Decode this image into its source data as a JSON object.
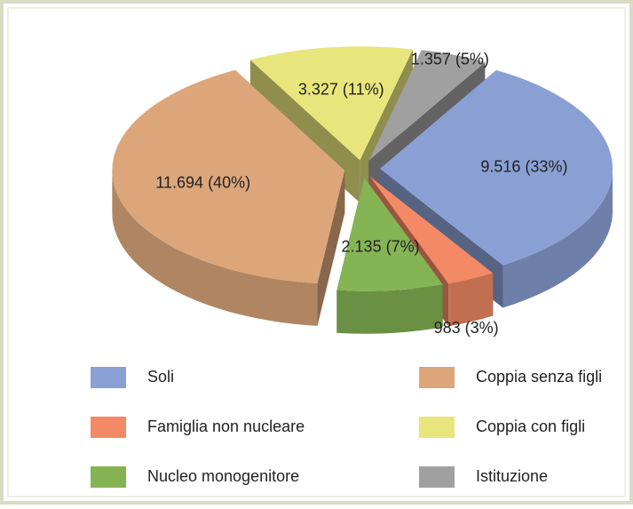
{
  "chart_data": {
    "type": "pie3d",
    "categories": [
      "Soli",
      "Famiglia non nucleare",
      "Nucleo monogenitore",
      "Coppia senza figli",
      "Coppia con figli",
      "Istituzione"
    ],
    "values": [
      9516,
      983,
      2135,
      11694,
      3327,
      1357
    ],
    "value_labels": [
      "9.516 (33%)",
      "983 (3%)",
      "2.135 (7%)",
      "11.694 (40%)",
      "3.327 (11%)",
      "1.357 (5%)"
    ],
    "colors": [
      "#8aa0d4",
      "#f38a65",
      "#85b455",
      "#dca67a",
      "#e8e57c",
      "#a0a0a0"
    ],
    "legend": "bottom"
  }
}
